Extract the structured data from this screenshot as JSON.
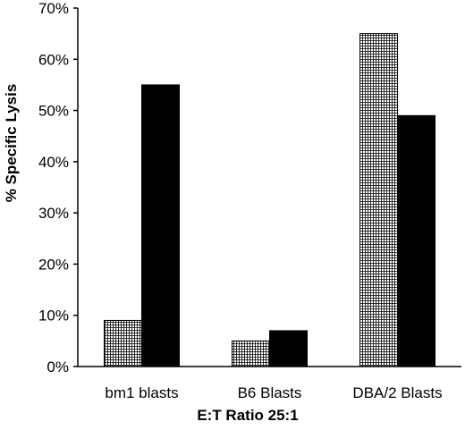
{
  "chart_data": {
    "type": "bar",
    "title": "",
    "xlabel": "E:T Ratio 25:1",
    "ylabel": "% Specific Lysis",
    "categories": [
      "bm1 blasts",
      "B6 Blasts",
      "DBA/2 Blasts"
    ],
    "series": [
      {
        "values": [
          9,
          5,
          65
        ],
        "fill": "crosshatch"
      },
      {
        "values": [
          55,
          7,
          49
        ],
        "fill": "solid-black"
      }
    ],
    "ylim": [
      0,
      70
    ],
    "yticks": [
      0,
      10,
      20,
      30,
      40,
      50,
      60,
      70
    ],
    "ytick_labels": [
      "0%",
      "10%",
      "20%",
      "30%",
      "40%",
      "50%",
      "60%",
      "70%"
    ],
    "grid": false,
    "legend": "none",
    "colors": {
      "bar_solid": "#000000",
      "hatch_line": "#000000",
      "hatch_background": "#ffffff",
      "axis": "#000000"
    }
  }
}
